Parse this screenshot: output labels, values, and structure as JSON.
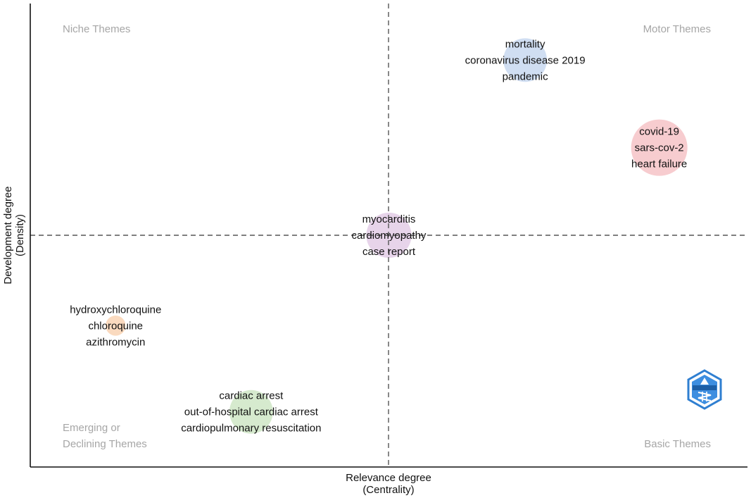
{
  "chart_data": {
    "type": "scatter",
    "subtype": "thematic-map",
    "xlabel": [
      "Relevance degree",
      "(Centrality)"
    ],
    "ylabel": [
      "Development degree",
      "(Density)"
    ],
    "quadrants": {
      "top_left": [
        "Niche Themes"
      ],
      "top_right": [
        "Motor Themes"
      ],
      "bottom_left": [
        "Emerging or",
        "Declining Themes"
      ],
      "bottom_right": [
        "Basic Themes"
      ]
    },
    "ref_lines": {
      "x": 0.5,
      "y": 0.5
    },
    "xlim": [
      0,
      1
    ],
    "ylim": [
      0,
      1
    ],
    "grid": false,
    "clusters": [
      {
        "x": 0.69,
        "y": 0.878,
        "size": 0.55,
        "color": "#c8d8f0",
        "terms": [
          "mortality",
          "coronavirus disease 2019",
          "pandemic"
        ]
      },
      {
        "x": 0.877,
        "y": 0.689,
        "size": 1.0,
        "color": "#f6c3c7",
        "terms": [
          "covid-19",
          "sars-cov-2",
          "heart failure"
        ]
      },
      {
        "x": 0.5,
        "y": 0.5,
        "size": 0.6,
        "color": "#e3cde6",
        "terms": [
          "myocarditis",
          "cardiomyopathy",
          "case report"
        ]
      },
      {
        "x": 0.119,
        "y": 0.305,
        "size": 0.07,
        "color": "#f9d3b4",
        "terms": [
          "hydroxychloroquine",
          "chloroquine",
          "azithromycin"
        ]
      },
      {
        "x": 0.308,
        "y": 0.119,
        "size": 0.55,
        "color": "#cfe6c6",
        "terms": [
          "cardiac arrest",
          "out-of-hospital cardiac arrest",
          "cardiopulmonary resuscitation"
        ]
      }
    ],
    "logo_text": "BIBLIOMETRIX"
  }
}
